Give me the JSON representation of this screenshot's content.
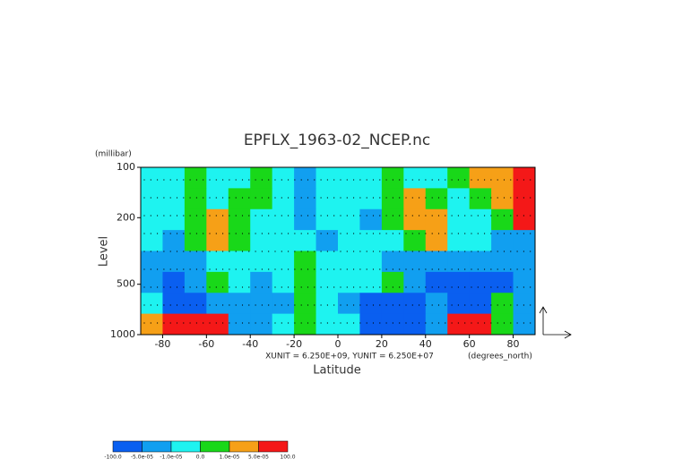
{
  "chart_data": {
    "type": "contour",
    "title": "EPFLX_1963-02_NCEP.nc",
    "y_units": "(millibar)",
    "ylabel": "Level",
    "xlabel": "Latitude",
    "x_units": "(degrees_north)",
    "annotation": "XUNIT = 6.250E+09, YUNIT = 6.250E+07",
    "xlim": [
      -90,
      90
    ],
    "xticks": [
      -80,
      -60,
      -40,
      -20,
      0,
      20,
      40,
      60,
      80
    ],
    "ylim": [
      100,
      1000
    ],
    "yticks": [
      100,
      200,
      500,
      1000
    ],
    "y_log": true,
    "y_inverted": true,
    "levels": [
      {
        "value": -100,
        "label": "-100.0"
      },
      {
        "value": -5e-05,
        "label": "-5.0e-05"
      },
      {
        "value": -1e-05,
        "label": "-1.0e-05"
      },
      {
        "value": 0,
        "label": "0.0"
      },
      {
        "value": 1e-05,
        "label": "1.0e-05"
      },
      {
        "value": 5e-05,
        "label": "5.0e-05"
      },
      {
        "value": 100,
        "label": "100.0"
      }
    ],
    "colors": [
      "#0a5ff0",
      "#119ff0",
      "#1ef3f0",
      "#19d819",
      "#f6a017",
      "#f41818"
    ],
    "z": [
      [
        -5e-06,
        -5e-06,
        5e-06,
        -5e-06,
        -5e-06,
        5e-06,
        -5e-06,
        -3e-05,
        -5e-06,
        -5e-06,
        -5e-06,
        5e-06,
        -5e-06,
        -5e-06,
        5e-06,
        3e-05,
        3e-05,
        8e-05
      ],
      [
        -5e-06,
        -5e-06,
        5e-06,
        -5e-06,
        5e-06,
        5e-06,
        -5e-06,
        -3e-05,
        -5e-06,
        -5e-06,
        -5e-06,
        5e-06,
        3e-05,
        5e-06,
        -5e-06,
        5e-06,
        3e-05,
        8e-05
      ],
      [
        -5e-06,
        -5e-06,
        5e-06,
        3e-05,
        5e-06,
        -5e-06,
        -5e-06,
        -3e-05,
        -5e-06,
        -5e-06,
        -3e-05,
        5e-06,
        3e-05,
        3e-05,
        -5e-06,
        -5e-06,
        5e-06,
        8e-05
      ],
      [
        -5e-06,
        -3e-05,
        5e-06,
        3e-05,
        5e-06,
        -5e-06,
        -5e-06,
        -5e-06,
        -3e-05,
        -5e-06,
        -5e-06,
        -5e-06,
        5e-06,
        3e-05,
        -5e-06,
        -5e-06,
        -3e-05,
        -3e-05
      ],
      [
        -3e-05,
        -3e-05,
        -3e-05,
        -5e-06,
        -5e-06,
        -5e-06,
        -5e-06,
        5e-06,
        -5e-06,
        -5e-06,
        -5e-06,
        -3e-05,
        -3e-05,
        -3e-05,
        -3e-05,
        -3e-05,
        -3e-05,
        -3e-05
      ],
      [
        -3e-05,
        -8e-05,
        -3e-05,
        5e-06,
        -5e-06,
        -3e-05,
        -5e-06,
        5e-06,
        -5e-06,
        -5e-06,
        -5e-06,
        5e-06,
        -3e-05,
        -8e-05,
        -8e-05,
        -8e-05,
        -8e-05,
        -3e-05
      ],
      [
        -5e-06,
        -8e-05,
        -8e-05,
        -3e-05,
        -3e-05,
        -3e-05,
        -3e-05,
        5e-06,
        -5e-06,
        -3e-05,
        -8e-05,
        -8e-05,
        -8e-05,
        -3e-05,
        -8e-05,
        -8e-05,
        5e-06,
        -3e-05
      ],
      [
        3e-05,
        8e-05,
        8e-05,
        8e-05,
        -3e-05,
        -3e-05,
        -5e-06,
        5e-06,
        -5e-06,
        -5e-06,
        -8e-05,
        -8e-05,
        -8e-05,
        -3e-05,
        8e-05,
        8e-05,
        5e-06,
        -3e-05
      ]
    ]
  }
}
